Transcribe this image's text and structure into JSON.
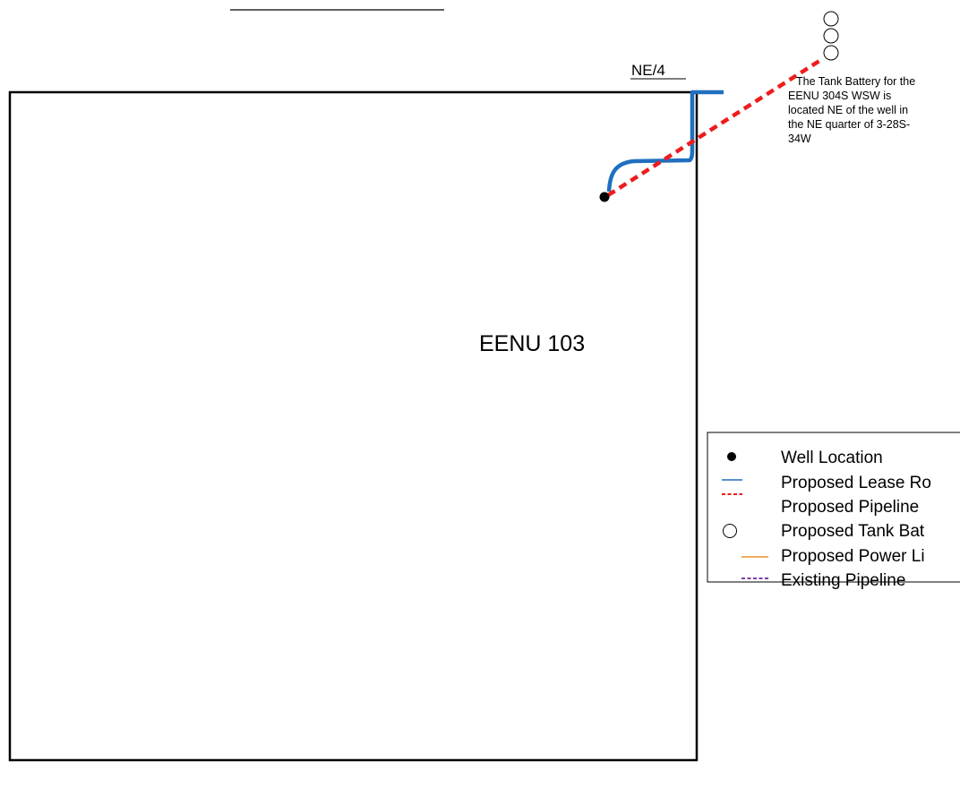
{
  "tract": {
    "name": "EENU 103",
    "quarter_label": "NE/4"
  },
  "note": {
    "lines": [
      "The Tank Battery for the",
      "EENU 304S WSW is",
      "located NE of the well in",
      "the NE quarter of 3-28S-",
      "34W"
    ]
  },
  "legend": {
    "items": [
      {
        "label": "Well Location",
        "icon": "well-dot-icon"
      },
      {
        "label": "Proposed Lease Ro",
        "icon": "blue-line-icon"
      },
      {
        "label": "Proposed Pipeline",
        "icon": "red-dashed-line-icon"
      },
      {
        "label": "Proposed Tank Bat",
        "icon": "circle-icon"
      },
      {
        "label": "Proposed Power Li",
        "icon": "orange-line-icon"
      },
      {
        "label": "Existing Pipeline",
        "icon": "purple-dashed-line-icon"
      }
    ]
  },
  "colors": {
    "lease_road": "#1f6fbf",
    "pipeline": "#ee1c1c",
    "power_line": "#e8922a",
    "existing_pipeline": "#7a3fa8",
    "boundary": "#000000"
  }
}
